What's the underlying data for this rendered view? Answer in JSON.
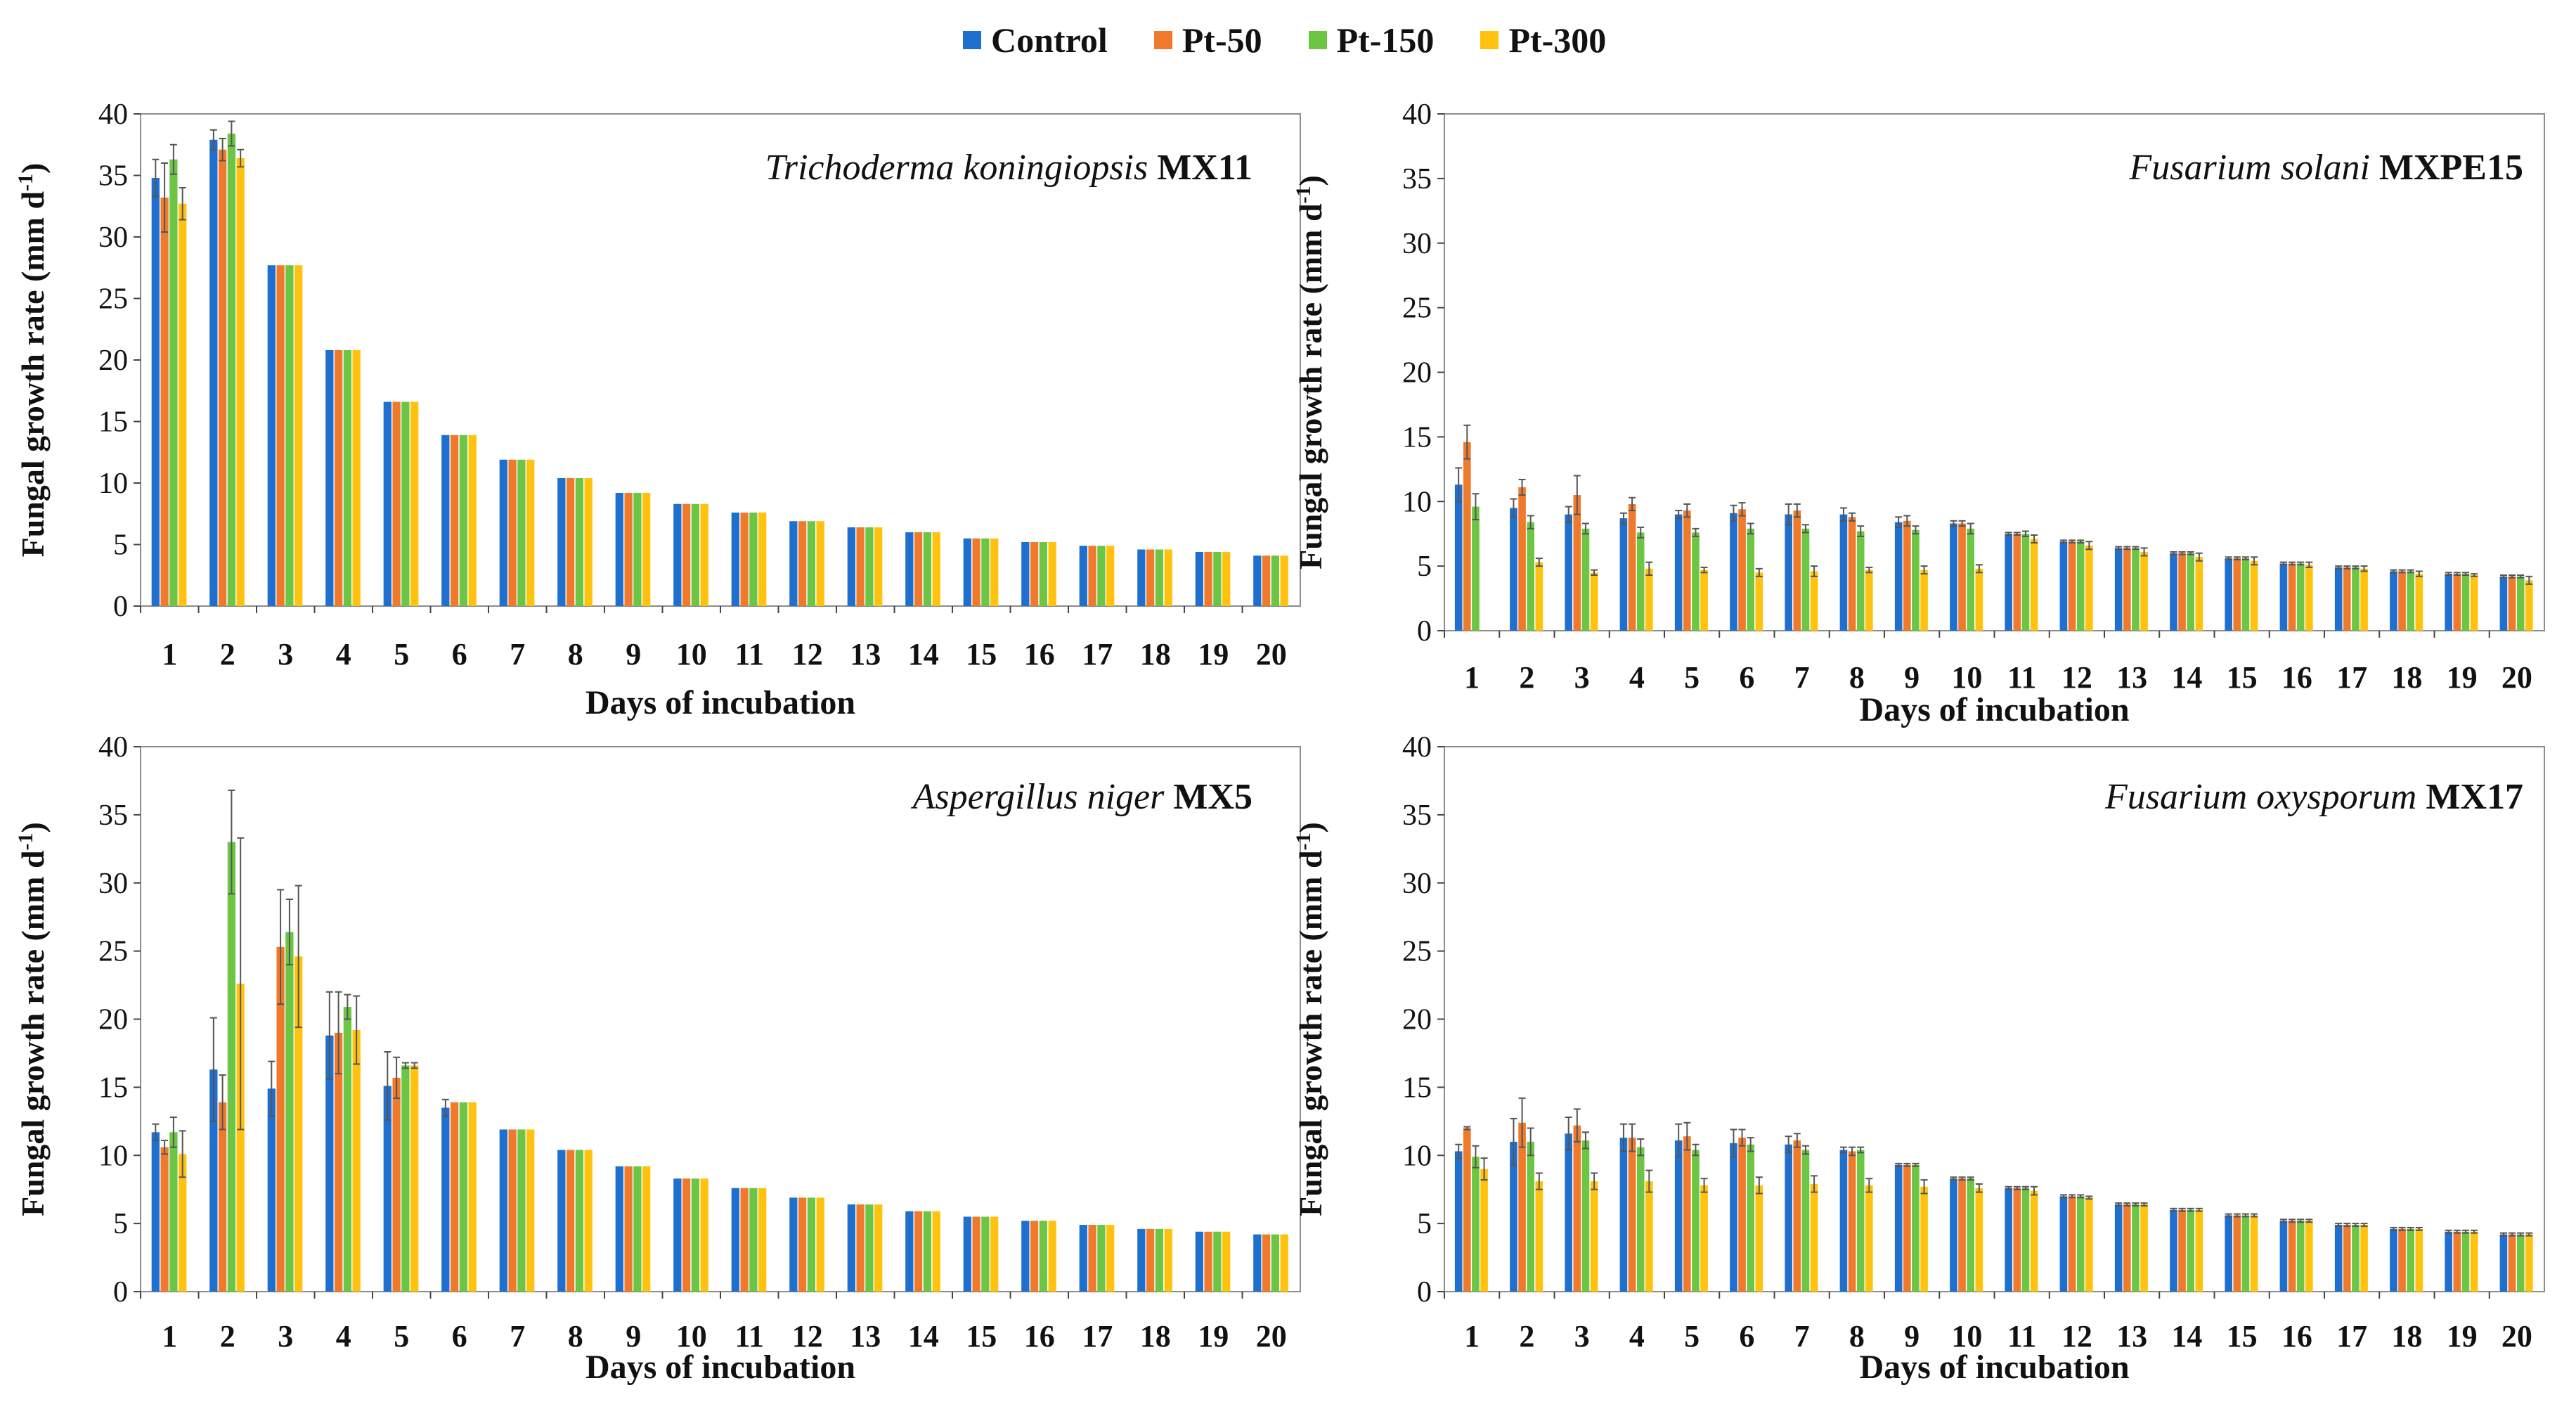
{
  "legend": {
    "items": [
      {
        "name": "Control",
        "color": "#1f6fcf"
      },
      {
        "name": "Pt-50",
        "color": "#f07a2c"
      },
      {
        "name": "Pt-150",
        "color": "#6cc644"
      },
      {
        "name": "Pt-300",
        "color": "#ffc20e"
      }
    ]
  },
  "chart_data": [
    {
      "type": "bar",
      "title_species": "Trichoderma koningiopsis",
      "title_strain": "MX11",
      "xlabel": "Days of incubation",
      "ylabel": "Fungal growth rate (mm d",
      "ylabel_sup": "-1",
      "ylabel_close": ")",
      "ylim": [
        0,
        40
      ],
      "yticks": [
        0,
        5,
        10,
        15,
        20,
        25,
        30,
        35,
        40
      ],
      "categories": [
        "1",
        "2",
        "3",
        "4",
        "5",
        "6",
        "7",
        "8",
        "9",
        "10",
        "11",
        "12",
        "13",
        "14",
        "15",
        "16",
        "17",
        "18",
        "19",
        "20"
      ],
      "series": [
        {
          "name": "Control",
          "values": [
            34.8,
            37.9,
            27.7,
            20.8,
            16.6,
            13.9,
            11.9,
            10.4,
            9.2,
            8.3,
            7.6,
            6.9,
            6.4,
            6.0,
            5.5,
            5.2,
            4.9,
            4.6,
            4.4,
            4.1
          ],
          "errors": [
            1.5,
            0.8,
            0,
            0,
            0,
            0,
            0,
            0,
            0,
            0,
            0,
            0,
            0,
            0,
            0,
            0,
            0,
            0,
            0,
            0
          ]
        },
        {
          "name": "Pt-50",
          "values": [
            33.2,
            37.1,
            27.7,
            20.8,
            16.6,
            13.9,
            11.9,
            10.4,
            9.2,
            8.3,
            7.6,
            6.9,
            6.4,
            6.0,
            5.5,
            5.2,
            4.9,
            4.6,
            4.4,
            4.1
          ],
          "errors": [
            2.8,
            0.9,
            0,
            0,
            0,
            0,
            0,
            0,
            0,
            0,
            0,
            0,
            0,
            0,
            0,
            0,
            0,
            0,
            0,
            0
          ]
        },
        {
          "name": "Pt-150",
          "values": [
            36.3,
            38.4,
            27.7,
            20.8,
            16.6,
            13.9,
            11.9,
            10.4,
            9.2,
            8.3,
            7.6,
            6.9,
            6.4,
            6.0,
            5.5,
            5.2,
            4.9,
            4.6,
            4.4,
            4.1
          ],
          "errors": [
            1.2,
            1.0,
            0,
            0,
            0,
            0,
            0,
            0,
            0,
            0,
            0,
            0,
            0,
            0,
            0,
            0,
            0,
            0,
            0,
            0
          ]
        },
        {
          "name": "Pt-300",
          "values": [
            32.7,
            36.4,
            27.7,
            20.8,
            16.6,
            13.9,
            11.9,
            10.4,
            9.2,
            8.3,
            7.6,
            6.9,
            6.4,
            6.0,
            5.5,
            5.2,
            4.9,
            4.6,
            4.4,
            4.1
          ],
          "errors": [
            1.3,
            0.7,
            0,
            0,
            0,
            0,
            0,
            0,
            0,
            0,
            0,
            0,
            0,
            0,
            0,
            0,
            0,
            0,
            0,
            0
          ]
        }
      ]
    },
    {
      "type": "bar",
      "title_species": "Fusarium solani",
      "title_strain": "MXPE15",
      "xlabel": "Days of incubation",
      "ylabel": "Fungal growth rate (mm d",
      "ylabel_sup": "-1",
      "ylabel_close": ")",
      "ylim": [
        0,
        40
      ],
      "yticks": [
        0,
        5,
        10,
        15,
        20,
        25,
        30,
        35,
        40
      ],
      "categories": [
        "1",
        "2",
        "3",
        "4",
        "5",
        "6",
        "7",
        "8",
        "9",
        "10",
        "11",
        "12",
        "13",
        "14",
        "15",
        "16",
        "17",
        "18",
        "19",
        "20"
      ],
      "series": [
        {
          "name": "Control",
          "values": [
            11.3,
            9.5,
            9.0,
            8.7,
            9.0,
            9.1,
            9.0,
            9.0,
            8.4,
            8.3,
            7.5,
            6.9,
            6.4,
            6.0,
            5.6,
            5.2,
            4.9,
            4.6,
            4.4,
            4.2
          ],
          "errors": [
            1.3,
            0.7,
            0.6,
            0.4,
            0.3,
            0.6,
            0.8,
            0.5,
            0.4,
            0.2,
            0.1,
            0.1,
            0.1,
            0.1,
            0.1,
            0.1,
            0.1,
            0.1,
            0.1,
            0.1
          ]
        },
        {
          "name": "Pt-50",
          "values": [
            14.6,
            11.1,
            10.5,
            9.8,
            9.3,
            9.4,
            9.3,
            8.8,
            8.5,
            8.3,
            7.5,
            6.9,
            6.4,
            6.0,
            5.6,
            5.2,
            4.9,
            4.6,
            4.4,
            4.2
          ],
          "errors": [
            1.3,
            0.6,
            1.5,
            0.5,
            0.5,
            0.5,
            0.5,
            0.3,
            0.4,
            0.2,
            0.1,
            0.1,
            0.1,
            0.1,
            0.1,
            0.1,
            0.1,
            0.1,
            0.1,
            0.1
          ]
        },
        {
          "name": "Pt-150",
          "values": [
            9.6,
            8.4,
            7.9,
            7.6,
            7.6,
            7.9,
            7.9,
            7.7,
            7.8,
            7.9,
            7.5,
            6.9,
            6.4,
            6.0,
            5.6,
            5.2,
            4.9,
            4.6,
            4.4,
            4.2
          ],
          "errors": [
            1.0,
            0.5,
            0.4,
            0.4,
            0.3,
            0.4,
            0.3,
            0.4,
            0.3,
            0.4,
            0.2,
            0.1,
            0.1,
            0.1,
            0.1,
            0.1,
            0.1,
            0.1,
            0.1,
            0.1
          ]
        },
        {
          "name": "Pt-300",
          "values": [
            0,
            5.3,
            4.5,
            4.8,
            4.7,
            4.5,
            4.6,
            4.7,
            4.7,
            4.8,
            7.1,
            6.6,
            6.1,
            5.7,
            5.4,
            5.1,
            4.8,
            4.4,
            4.3,
            3.9
          ],
          "errors": [
            0,
            0.3,
            0.2,
            0.5,
            0.2,
            0.3,
            0.4,
            0.2,
            0.3,
            0.3,
            0.3,
            0.3,
            0.3,
            0.3,
            0.3,
            0.2,
            0.2,
            0.2,
            0.1,
            0.3
          ]
        }
      ]
    },
    {
      "type": "bar",
      "title_species": "Aspergillus niger",
      "title_strain": "MX5",
      "xlabel": "Days of incubation",
      "ylabel": "Fungal growth rate (mm d",
      "ylabel_sup": "-1",
      "ylabel_close": ")",
      "ylim": [
        0,
        40
      ],
      "yticks": [
        0,
        5,
        10,
        15,
        20,
        25,
        30,
        35,
        40
      ],
      "categories": [
        "1",
        "2",
        "3",
        "4",
        "5",
        "6",
        "7",
        "8",
        "9",
        "10",
        "11",
        "12",
        "13",
        "14",
        "15",
        "16",
        "17",
        "18",
        "19",
        "20"
      ],
      "series": [
        {
          "name": "Control",
          "values": [
            11.7,
            16.3,
            14.9,
            18.8,
            15.1,
            13.5,
            11.9,
            10.4,
            9.2,
            8.3,
            7.6,
            6.9,
            6.4,
            5.9,
            5.5,
            5.2,
            4.9,
            4.6,
            4.4,
            4.2
          ],
          "errors": [
            0.6,
            3.8,
            2.0,
            3.2,
            2.5,
            0.6,
            0,
            0,
            0,
            0,
            0,
            0,
            0,
            0,
            0,
            0,
            0,
            0,
            0,
            0
          ]
        },
        {
          "name": "Pt-50",
          "values": [
            10.6,
            13.9,
            25.3,
            19.0,
            15.7,
            13.9,
            11.9,
            10.4,
            9.2,
            8.3,
            7.6,
            6.9,
            6.4,
            5.9,
            5.5,
            5.2,
            4.9,
            4.6,
            4.4,
            4.2
          ],
          "errors": [
            0.5,
            2.0,
            4.2,
            3.0,
            1.5,
            0,
            0,
            0,
            0,
            0,
            0,
            0,
            0,
            0,
            0,
            0,
            0,
            0,
            0,
            0
          ]
        },
        {
          "name": "Pt-150",
          "values": [
            11.7,
            33.0,
            26.4,
            20.9,
            16.6,
            13.9,
            11.9,
            10.4,
            9.2,
            8.3,
            7.6,
            6.9,
            6.4,
            5.9,
            5.5,
            5.2,
            4.9,
            4.6,
            4.4,
            4.2
          ],
          "errors": [
            1.1,
            3.8,
            2.4,
            0.9,
            0.2,
            0,
            0,
            0,
            0,
            0,
            0,
            0,
            0,
            0,
            0,
            0,
            0,
            0,
            0,
            0
          ]
        },
        {
          "name": "Pt-300",
          "values": [
            10.1,
            22.6,
            24.6,
            19.2,
            16.6,
            13.9,
            11.9,
            10.4,
            9.2,
            8.3,
            7.6,
            6.9,
            6.4,
            5.9,
            5.5,
            5.2,
            4.9,
            4.6,
            4.4,
            4.2
          ],
          "errors": [
            1.7,
            10.7,
            5.2,
            2.5,
            0.2,
            0,
            0,
            0,
            0,
            0,
            0,
            0,
            0,
            0,
            0,
            0,
            0,
            0,
            0,
            0
          ]
        }
      ]
    },
    {
      "type": "bar",
      "title_species": "Fusarium oxysporum",
      "title_strain": "MX17",
      "xlabel": "Days of incubation",
      "ylabel": "Fungal growth rate (mm d",
      "ylabel_sup": "-1",
      "ylabel_close": ")",
      "ylim": [
        0,
        40
      ],
      "yticks": [
        0,
        5,
        10,
        15,
        20,
        25,
        30,
        35,
        40
      ],
      "categories": [
        "1",
        "2",
        "3",
        "4",
        "5",
        "6",
        "7",
        "8",
        "9",
        "10",
        "11",
        "12",
        "13",
        "14",
        "15",
        "16",
        "17",
        "18",
        "19",
        "20"
      ],
      "series": [
        {
          "name": "Control",
          "values": [
            10.3,
            11.0,
            11.6,
            11.3,
            11.1,
            10.9,
            10.8,
            10.4,
            9.3,
            8.3,
            7.6,
            7.0,
            6.4,
            6.0,
            5.6,
            5.2,
            4.9,
            4.6,
            4.4,
            4.2
          ],
          "errors": [
            0.5,
            1.7,
            1.2,
            1.0,
            1.2,
            1.0,
            0.6,
            0.2,
            0.1,
            0.1,
            0.1,
            0.1,
            0.1,
            0.1,
            0.1,
            0.1,
            0.1,
            0.1,
            0.1,
            0.1
          ]
        },
        {
          "name": "Pt-50",
          "values": [
            12.0,
            12.4,
            12.2,
            11.3,
            11.4,
            11.3,
            11.1,
            10.3,
            9.3,
            8.3,
            7.6,
            7.0,
            6.4,
            6.0,
            5.6,
            5.2,
            4.9,
            4.6,
            4.4,
            4.2
          ],
          "errors": [
            0.1,
            1.8,
            1.2,
            1.0,
            1.0,
            0.6,
            0.5,
            0.3,
            0.1,
            0.1,
            0.1,
            0.1,
            0.1,
            0.1,
            0.1,
            0.1,
            0.1,
            0.1,
            0.1,
            0.1
          ]
        },
        {
          "name": "Pt-150",
          "values": [
            9.9,
            11.0,
            11.1,
            10.6,
            10.4,
            10.8,
            10.4,
            10.4,
            9.3,
            8.3,
            7.6,
            7.0,
            6.4,
            6.0,
            5.6,
            5.2,
            4.9,
            4.6,
            4.4,
            4.2
          ],
          "errors": [
            0.8,
            1.0,
            0.6,
            0.6,
            0.4,
            0.5,
            0.3,
            0.2,
            0.1,
            0.1,
            0.1,
            0.1,
            0.1,
            0.1,
            0.1,
            0.1,
            0.1,
            0.1,
            0.1,
            0.1
          ]
        },
        {
          "name": "Pt-300",
          "values": [
            9.0,
            8.1,
            8.1,
            8.1,
            7.8,
            7.8,
            7.9,
            7.8,
            7.7,
            7.6,
            7.4,
            6.9,
            6.4,
            6.0,
            5.6,
            5.2,
            4.9,
            4.6,
            4.4,
            4.2
          ],
          "errors": [
            0.8,
            0.6,
            0.6,
            0.8,
            0.5,
            0.6,
            0.6,
            0.5,
            0.5,
            0.3,
            0.3,
            0.1,
            0.1,
            0.1,
            0.1,
            0.1,
            0.1,
            0.1,
            0.1,
            0.1
          ]
        }
      ]
    }
  ]
}
